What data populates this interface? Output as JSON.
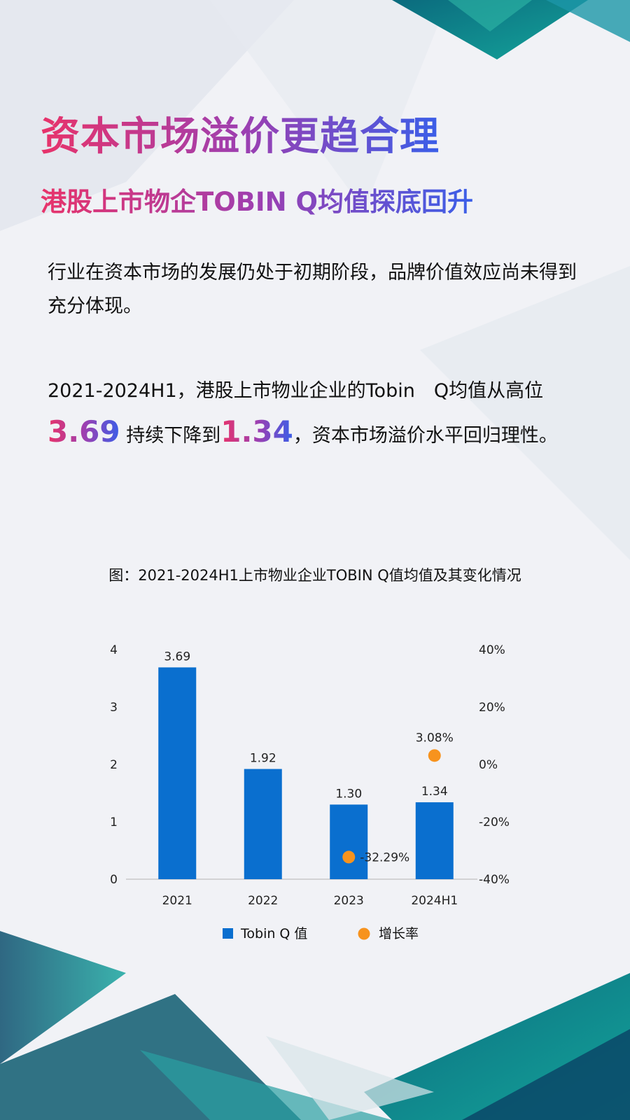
{
  "title": "资本市场溢价更趋合理",
  "subtitle": "港股上市物企TOBIN Q均值探底回升",
  "paragraph1": "行业在资本市场的发展仍处于初期阶段，品牌价值效应尚未得到充分体现。",
  "paragraph2": {
    "part1": "2021-2024H1，港股上市物业企业的Tobin　Q均值从高位 ",
    "high": "3.69",
    "part2": " 持续下降到",
    "low": "1.34",
    "part3": "，资本市场溢价水平回归理性。"
  },
  "caption": "图：2021-2024H1上市物业企业TOBIN Q值均值及其变化情况",
  "colors": {
    "bar": "#0a6fcf",
    "dot": "#f7931e",
    "accent_start": "#e8336a",
    "accent_end": "#3a5ee8"
  },
  "chart_data": {
    "type": "bar",
    "categories": [
      "2021",
      "2022",
      "2023",
      "2024H1"
    ],
    "series": [
      {
        "name": "Tobin Q 值",
        "type": "bar",
        "axis": "left",
        "values": [
          3.69,
          1.92,
          1.3,
          1.34
        ],
        "labels": [
          "3.69",
          "1.92",
          "1.30",
          "1.34"
        ]
      },
      {
        "name": "增长率",
        "type": "scatter",
        "axis": "right",
        "values": [
          null,
          null,
          -32.29,
          3.08
        ],
        "labels": [
          "",
          "",
          "-32.29%",
          "3.08%"
        ]
      }
    ],
    "ylim": [
      0,
      4
    ],
    "yticks": [
      "0",
      "1",
      "2",
      "3",
      "4"
    ],
    "y2lim": [
      -40,
      40
    ],
    "y2ticks": [
      "-40%",
      "-20%",
      "0%",
      "20%",
      "40%"
    ],
    "legend": "bottom",
    "grid": false
  }
}
